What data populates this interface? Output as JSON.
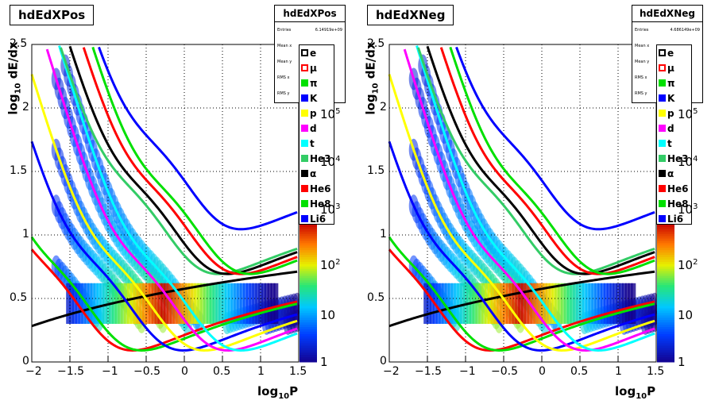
{
  "panels": [
    {
      "title": "hdEdXPos",
      "stats": {
        "name": "hdEdXPos",
        "rows": [
          {
            "label": "Entries",
            "value": "6.14919e+09"
          },
          {
            "label": "Mean x",
            "value": ""
          },
          {
            "label": "Mean y",
            "value": ""
          },
          {
            "label": "RMS x",
            "value": ""
          },
          {
            "label": "RMS y",
            "value": ""
          }
        ]
      }
    },
    {
      "title": "hdEdXNeg",
      "stats": {
        "name": "hdEdXNeg",
        "rows": [
          {
            "label": "Entries",
            "value": "4.686149e+09"
          },
          {
            "label": "Mean x",
            "value": ""
          },
          {
            "label": "Mean y",
            "value": ""
          },
          {
            "label": "RMS x",
            "value": ""
          },
          {
            "label": "RMS y",
            "value": ""
          }
        ]
      }
    }
  ],
  "legend": [
    {
      "label": "e",
      "color": "#000000"
    },
    {
      "label": "μ",
      "color": "#ff0000"
    },
    {
      "label": "π",
      "color": "#00e000"
    },
    {
      "label": "K",
      "color": "#0000ff"
    },
    {
      "label": "p",
      "color": "#ffff00"
    },
    {
      "label": "d",
      "color": "#ff00ff"
    },
    {
      "label": "t",
      "color": "#00ffff"
    },
    {
      "label": "He3",
      "color": "#33cc66"
    },
    {
      "label": "α",
      "color": "#000000"
    },
    {
      "label": "He6",
      "color": "#ff0000"
    },
    {
      "label": "He8",
      "color": "#00e000"
    },
    {
      "label": "Li6",
      "color": "#0000ff"
    }
  ],
  "axes": {
    "xlabel": "log",
    "xlabel_sub": "10",
    "xlabel_tail": "P",
    "ylabel": "log",
    "ylabel_sub": "10",
    "ylabel_tail": " dE/dx",
    "xticks": [
      "−2",
      "−1.5",
      "−1",
      "−0.5",
      "0",
      "0.5",
      "1",
      "1.5"
    ],
    "yticks": [
      "0",
      "0.5",
      "1",
      "1.5",
      "2",
      "2.5"
    ],
    "zticks": [
      "1",
      "10",
      "10",
      "10",
      "10",
      "10"
    ],
    "zticks_exp": [
      "",
      "",
      "2",
      "3",
      "4",
      "5"
    ]
  },
  "chart_data": [
    {
      "type": "heatmap",
      "title": "hdEdXPos",
      "xlabel": "log10P",
      "ylabel": "log10 dE/dx",
      "xlim": [
        -2,
        1.5
      ],
      "ylim": [
        0,
        2.5
      ],
      "zscale": "log",
      "zlim": [
        1,
        100000
      ],
      "grid": true,
      "curves": [
        "e",
        "μ",
        "π",
        "K",
        "p",
        "d",
        "t",
        "He3",
        "α",
        "He6",
        "He8",
        "Li6"
      ]
    },
    {
      "type": "heatmap",
      "title": "hdEdXNeg",
      "xlabel": "log10P",
      "ylabel": "log10 dE/dx",
      "xlim": [
        -2,
        1.5
      ],
      "ylim": [
        0,
        2.5
      ],
      "zscale": "log",
      "zlim": [
        1,
        100000
      ],
      "grid": true,
      "curves": [
        "e",
        "μ",
        "π",
        "K",
        "p",
        "d",
        "t",
        "He3",
        "α",
        "He6",
        "He8",
        "Li6"
      ]
    }
  ]
}
